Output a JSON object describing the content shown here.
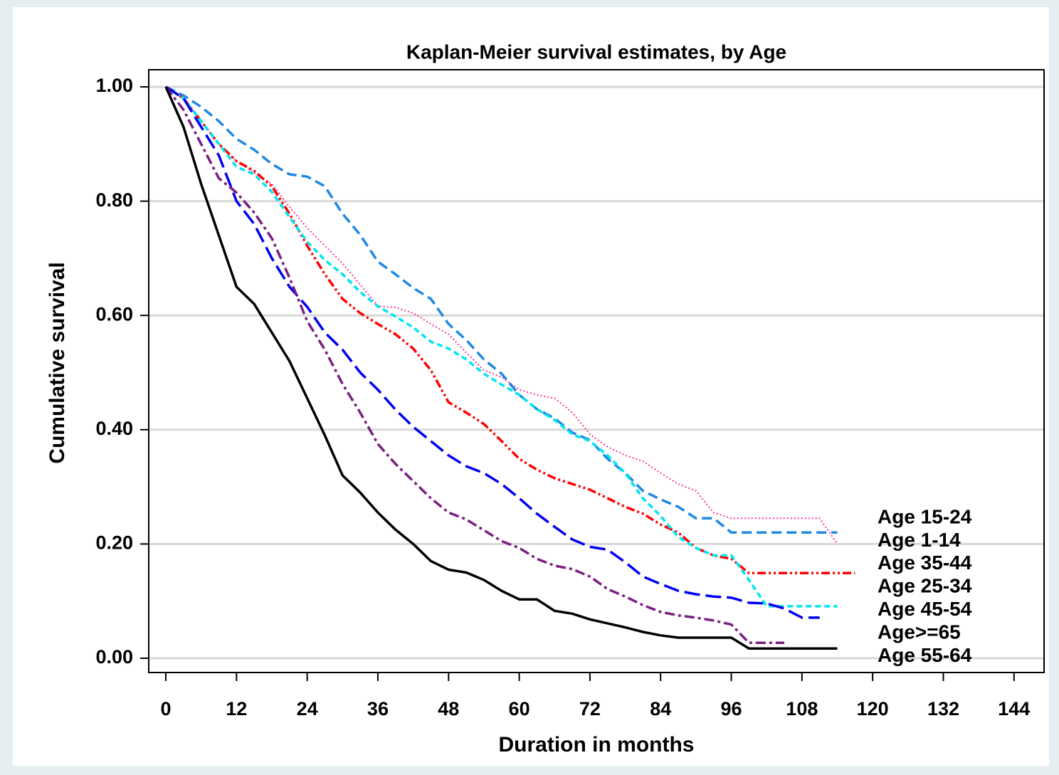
{
  "chart_data": {
    "type": "line",
    "title": "Kaplan-Meier survival estimates, by Age",
    "x_label": "Duration in months",
    "y_label": "Cumulative survival",
    "x": [
      0,
      3,
      6,
      9,
      12,
      15,
      18,
      21,
      24,
      27,
      30,
      33,
      36,
      39,
      42,
      45,
      48,
      51,
      54,
      57,
      60,
      63,
      66,
      69,
      72,
      75,
      78,
      81,
      84,
      87,
      90,
      93,
      96,
      99,
      102,
      105,
      108,
      111,
      114,
      117
    ],
    "series": [
      {
        "name": "Age 15-24",
        "color": "#ff3399",
        "dash": "2 3",
        "width": 2,
        "values": [
          1,
          0.98,
          0.94,
          0.9,
          0.87,
          0.85,
          0.83,
          0.79,
          0.753,
          0.722,
          0.691,
          0.654,
          0.616,
          0.614,
          0.604,
          0.585,
          0.567,
          0.535,
          0.504,
          0.492,
          0.47,
          0.461,
          0.455,
          0.43,
          0.392,
          0.37,
          0.355,
          0.345,
          0.324,
          0.305,
          0.293,
          0.255,
          0.245,
          0.245,
          0.245,
          0.245,
          0.245,
          0.245,
          0.2,
          null
        ]
      },
      {
        "name": "Age 1-14",
        "color": "#1e88e5",
        "dash": "14 7",
        "width": 3.5,
        "values": [
          1,
          0.985,
          0.965,
          0.94,
          0.909,
          0.89,
          0.865,
          0.847,
          0.843,
          0.826,
          0.778,
          0.741,
          0.694,
          0.672,
          0.648,
          0.629,
          0.585,
          0.557,
          0.523,
          0.498,
          0.461,
          0.436,
          0.42,
          0.395,
          0.382,
          0.349,
          0.324,
          0.293,
          0.278,
          0.265,
          0.245,
          0.245,
          0.22,
          0.22,
          0.22,
          0.22,
          0.22,
          0.22,
          0.22,
          null
        ]
      },
      {
        "name": "Age 35-44",
        "color": "#ff0000",
        "dash": "12 4 3 4 3 4",
        "width": 3.5,
        "values": [
          1,
          0.98,
          0.94,
          0.9,
          0.87,
          0.853,
          0.826,
          0.778,
          0.722,
          0.672,
          0.629,
          0.604,
          0.585,
          0.567,
          0.542,
          0.504,
          0.448,
          0.43,
          0.41,
          0.38,
          0.349,
          0.33,
          0.315,
          0.305,
          0.295,
          0.28,
          0.265,
          0.253,
          0.234,
          0.22,
          0.193,
          0.18,
          0.174,
          0.149,
          0.149,
          0.149,
          0.149,
          0.149,
          0.149,
          0.149
        ]
      },
      {
        "name": "Age 25-34",
        "color": "#00e5ee",
        "dash": "8 5",
        "width": 3.5,
        "values": [
          1,
          0.98,
          0.94,
          0.9,
          0.86,
          0.847,
          0.816,
          0.772,
          0.729,
          0.697,
          0.672,
          0.641,
          0.616,
          0.598,
          0.579,
          0.554,
          0.542,
          0.523,
          0.498,
          0.479,
          0.461,
          0.436,
          0.417,
          0.392,
          0.38,
          0.355,
          0.324,
          0.28,
          0.249,
          0.212,
          0.193,
          0.18,
          0.18,
          0.137,
          0.091,
          0.091,
          0.091,
          0.091,
          0.091,
          null
        ]
      },
      {
        "name": "Age 45-54",
        "color": "#0000ee",
        "dash": "22 8",
        "width": 3.5,
        "values": [
          1,
          0.98,
          0.93,
          0.88,
          0.8,
          0.76,
          0.7,
          0.65,
          0.615,
          0.57,
          0.54,
          0.5,
          0.47,
          0.435,
          0.405,
          0.38,
          0.355,
          0.336,
          0.324,
          0.305,
          0.28,
          0.253,
          0.23,
          0.208,
          0.195,
          0.19,
          0.168,
          0.143,
          0.13,
          0.118,
          0.112,
          0.108,
          0.106,
          0.097,
          0.096,
          0.087,
          0.071,
          0.071,
          null,
          null
        ]
      },
      {
        "name": "Age>=65",
        "color": "#7a1f7f",
        "dash": "14 5 4 5",
        "width": 3.5,
        "values": [
          1,
          0.96,
          0.9,
          0.84,
          0.815,
          0.78,
          0.735,
          0.666,
          0.59,
          0.54,
          0.48,
          0.43,
          0.375,
          0.34,
          0.31,
          0.28,
          0.255,
          0.243,
          0.224,
          0.205,
          0.193,
          0.174,
          0.162,
          0.156,
          0.143,
          0.121,
          0.108,
          0.093,
          0.081,
          0.075,
          0.071,
          0.066,
          0.059,
          0.027,
          0.027,
          0.027,
          null,
          null,
          null,
          null
        ]
      },
      {
        "name": "Age 55-64",
        "color": "#000000",
        "dash": "none",
        "width": 3.5,
        "values": [
          1,
          0.93,
          0.83,
          0.74,
          0.65,
          0.62,
          0.57,
          0.52,
          0.455,
          0.39,
          0.32,
          0.29,
          0.255,
          0.225,
          0.2,
          0.17,
          0.155,
          0.15,
          0.137,
          0.118,
          0.103,
          0.103,
          0.083,
          0.078,
          0.068,
          0.061,
          0.054,
          0.046,
          0.04,
          0.036,
          0.036,
          0.036,
          0.036,
          0.017,
          0.017,
          0.017,
          0.017,
          0.017,
          0.017,
          null
        ]
      }
    ],
    "xlim": [
      -2.9,
      149.1
    ],
    "ylim": [
      -0.025,
      1.03
    ],
    "xticks": [
      0,
      12,
      24,
      36,
      48,
      60,
      72,
      84,
      96,
      108,
      120,
      132,
      144
    ],
    "yticks": [
      {
        "value": 0,
        "label": "0.00"
      },
      {
        "value": 0.2,
        "label": "0.20"
      },
      {
        "value": 0.4,
        "label": "0.40"
      },
      {
        "value": 0.6,
        "label": "0.60"
      },
      {
        "value": 0.8,
        "label": "0.80"
      },
      {
        "value": 1,
        "label": "1.00"
      }
    ],
    "grid": true
  }
}
